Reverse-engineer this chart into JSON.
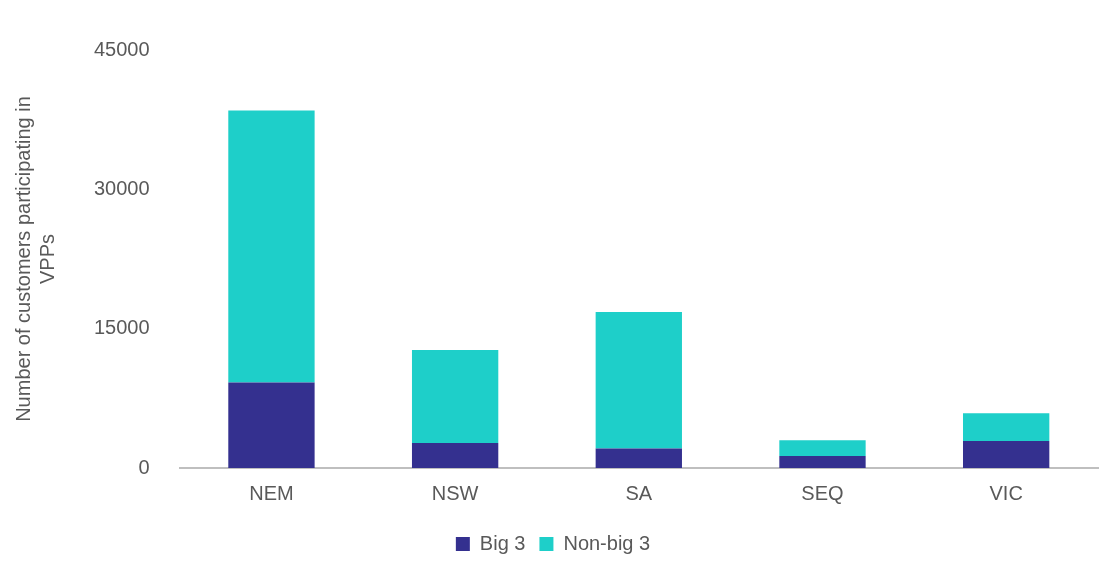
{
  "chart_data": {
    "type": "bar",
    "ylabel": "Number of customers participating in VPPs",
    "categories": [
      "NEM",
      "NSW",
      "SA",
      "SEQ",
      "VIC"
    ],
    "stacked": true,
    "series": [
      {
        "name": "Big 3",
        "color": "#34308f",
        "values": [
          9200,
          2700,
          2100,
          1300,
          2900
        ]
      },
      {
        "name": "Non-big 3",
        "color": "#1ecfc9",
        "values": [
          29300,
          10000,
          14700,
          1700,
          3000
        ]
      }
    ],
    "ylim": [
      0,
      45000
    ],
    "yticks": [
      0,
      15000,
      30000,
      45000
    ],
    "grid": false,
    "legend": "bottom"
  }
}
